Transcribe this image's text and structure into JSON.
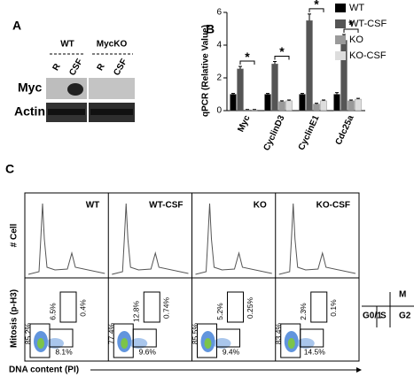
{
  "panel_a": {
    "label": "A",
    "groups": [
      "WT",
      "MycKO"
    ],
    "lanes": [
      "R",
      "CSF",
      "R",
      "CSF"
    ],
    "rows": [
      "Myc",
      "Actin"
    ]
  },
  "panel_b_label": "B",
  "chart_data": {
    "type": "bar",
    "y_label": "qPCR (Relative Value)",
    "categories": [
      "Myc",
      "CyclinD3",
      "CyclinE1",
      "Cdc25a"
    ],
    "series": [
      {
        "name": "WT",
        "color": "#000000",
        "values": [
          1,
          1,
          1,
          1
        ],
        "errors": [
          0.05,
          0.05,
          0.05,
          0.1
        ]
      },
      {
        "name": "WT-CSF",
        "color": "#555555",
        "values": [
          2.55,
          2.85,
          5.5,
          4.3
        ],
        "errors": [
          0.15,
          0.15,
          0.4,
          0.35
        ]
      },
      {
        "name": "KO",
        "color": "#9a9a9a",
        "values": [
          0.05,
          0.55,
          0.4,
          0.6
        ],
        "errors": [
          0.02,
          0.05,
          0.05,
          0.05
        ]
      },
      {
        "name": "KO-CSF",
        "color": "#dddddd",
        "values": [
          0.05,
          0.6,
          0.6,
          0.7
        ],
        "errors": [
          0.02,
          0.05,
          0.05,
          0.05
        ]
      }
    ],
    "significance": [
      "*",
      "*",
      "*",
      "*"
    ],
    "ylim": [
      0,
      6
    ],
    "yticks": [
      0,
      2,
      4,
      6
    ],
    "legend": "top-right"
  },
  "panel_c": {
    "label": "C",
    "conditions": [
      "WT",
      "WT-CSF",
      "KO",
      "KO-CSF"
    ],
    "hist_y_label": "# Cell",
    "dot_y_label": "Mitosis (p-H3)",
    "x_label": "DNA content (PI)",
    "gates": [
      [
        "6.5%",
        "0.4%",
        "85.2%",
        "8.1%"
      ],
      [
        "12.8%",
        "0.74%",
        "77.4%",
        "9.6%"
      ],
      [
        "5.2%",
        "0.25%",
        "85.5%",
        "9.4%"
      ],
      [
        "2.3%",
        "0.1%",
        "83.4%",
        "14.5%"
      ]
    ],
    "cycle_labels": [
      "M",
      "G0/1",
      "S",
      "G2"
    ]
  }
}
